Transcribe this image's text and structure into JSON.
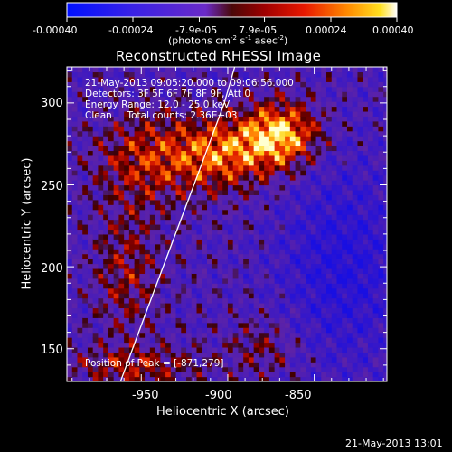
{
  "chart_data": {
    "type": "heatmap",
    "title": "Reconstructed RHESSI Image",
    "xlabel": "Heliocentric X (arcsec)",
    "ylabel": "Heliocentric Y (arcsec)",
    "xlim": [
      -993,
      -808
    ],
    "ylim": [
      130,
      322
    ],
    "xticks": [
      -950,
      -900,
      -850
    ],
    "yticks": [
      150,
      200,
      250,
      300
    ],
    "colorbar": {
      "ticks": [
        "-0.00040",
        "-0.00024",
        "-7.9e-05",
        "7.9e-05",
        "0.00024",
        "0.00040"
      ],
      "unit_prefix": "(photons cm",
      "unit_exp1": "-2",
      "unit_mid": " s",
      "unit_exp2": "-1",
      "unit_mid2": " asec",
      "unit_exp3": "-2",
      "unit_suffix": ")",
      "range": [
        -0.0004,
        0.0004
      ]
    },
    "annotations": [
      "21-May-2013 09:05:20.000 to 09:06:56.000",
      "Detectors: 3F 5F 6F 7F 8F 9F, Att 0",
      "Energy Range: 12.0 - 25.0 keV",
      "Clean     Total counts: 2.36E+03"
    ],
    "peak_label": "Position of Peak = [-871,279]",
    "peak": [
      -871,
      279
    ],
    "limb_curve": [
      [
        -962,
        130
      ],
      [
        -948,
        170
      ],
      [
        -932,
        215
      ],
      [
        -916,
        260
      ],
      [
        -902,
        300
      ],
      [
        -896,
        322
      ]
    ],
    "grid": false
  },
  "footer": {
    "timestamp": "21-May-2013 13:01"
  },
  "colors": {
    "background": "#000000",
    "axes": "#ffffff"
  }
}
